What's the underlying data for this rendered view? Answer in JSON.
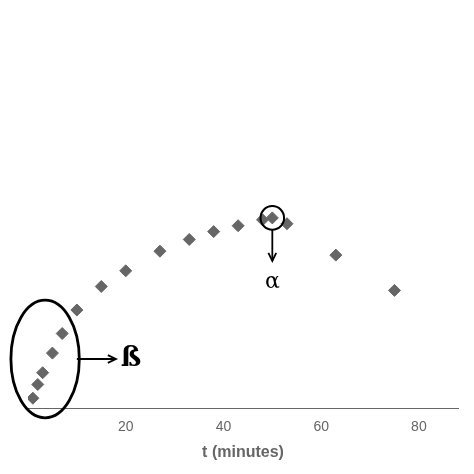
{
  "chart_data": {
    "type": "scatter",
    "xlabel": "t (minutes)",
    "x": [
      1,
      2,
      3,
      5,
      7,
      10,
      15,
      20,
      27,
      33,
      38,
      43,
      48,
      50,
      53,
      63,
      75
    ],
    "values": [
      0.05,
      0.12,
      0.18,
      0.28,
      0.38,
      0.5,
      0.62,
      0.7,
      0.8,
      0.86,
      0.9,
      0.93,
      0.96,
      0.97,
      0.94,
      0.78,
      0.6
    ],
    "color": "#666666",
    "marker": "diamond",
    "xlim": [
      0,
      88
    ],
    "xticks": [
      20,
      40,
      60,
      80
    ],
    "ylim": [
      0,
      2.0
    ],
    "tick_labels": "x",
    "grid": false,
    "annotations": [
      {
        "text": "α",
        "x": 50,
        "y": 0.7,
        "circle": {
          "x": 50,
          "y": 0.97,
          "radius": 0.06
        },
        "arrow": {
          "from": [
            50,
            0.91
          ],
          "to": [
            50,
            0.75
          ]
        }
      },
      {
        "text": "ß",
        "x": 19,
        "y": 0.25,
        "ellipse": {
          "x": 3.5,
          "y": 0.25,
          "width": 14,
          "height": 0.6
        },
        "arrow": {
          "from": [
            10,
            0.25
          ],
          "to": [
            18,
            0.25
          ]
        }
      }
    ]
  }
}
